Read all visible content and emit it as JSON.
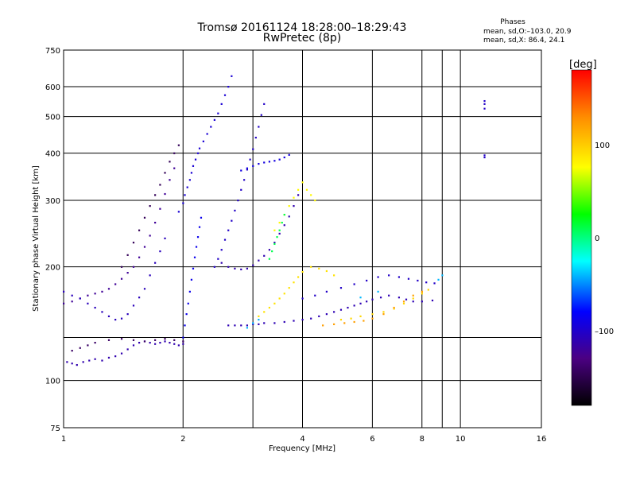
{
  "header": {
    "title_line1": "Tromsø 20161124 18:28:00–18:29:43",
    "title_line2": "RwPretec (8p)",
    "stats_title": "Phases",
    "stats_o": "mean, sd,O:–103.0, 20.9",
    "stats_x": "mean, sd,X:  86.4, 24.1"
  },
  "chart_data": {
    "type": "scatter",
    "xlabel": "Frequency [MHz]",
    "ylabel": "Stationary phase Virtual Height [km]",
    "x_scale": "log",
    "y_scale": "log",
    "xlim": [
      1,
      16
    ],
    "ylim": [
      75,
      750
    ],
    "x_ticks": [
      {
        "value": 1,
        "label": "1"
      },
      {
        "value": 2,
        "label": "2"
      },
      {
        "value": 4,
        "label": "4"
      },
      {
        "value": 6,
        "label": "6"
      },
      {
        "value": 8,
        "label": "8"
      },
      {
        "value": 10,
        "label": "10"
      },
      {
        "value": 16,
        "label": "16"
      }
    ],
    "x_grid": [
      2,
      3,
      4,
      6,
      8,
      9,
      10
    ],
    "y_ticks": [
      {
        "value": 75,
        "label": "75"
      },
      {
        "value": 100,
        "label": "100"
      },
      {
        "value": 200,
        "label": "200"
      },
      {
        "value": 300,
        "label": "300"
      },
      {
        "value": 400,
        "label": "400"
      },
      {
        "value": 500,
        "label": "500"
      },
      {
        "value": 600,
        "label": "600"
      },
      {
        "value": 750,
        "label": "750"
      }
    ],
    "y_grid": [
      100,
      130,
      200,
      300,
      400,
      500,
      600
    ],
    "grid": true,
    "colorbar": {
      "unit_label": "[deg]",
      "range": [
        -180,
        180
      ],
      "ticks": [
        {
          "value": 100,
          "label": "100"
        },
        {
          "value": 0,
          "label": "0"
        },
        {
          "value": -100,
          "label": "–100"
        }
      ],
      "colors": [
        "#000000",
        "#4b0082",
        "#0000ff",
        "#00ffff",
        "#00ff00",
        "#ffff00",
        "#ff8c00",
        "#ff0000"
      ]
    },
    "traces": [
      {
        "name": "O-low-layer",
        "phase": -110,
        "points": [
          [
            1.02,
            112
          ],
          [
            1.05,
            111
          ],
          [
            1.08,
            110
          ],
          [
            1.12,
            112
          ],
          [
            1.16,
            113
          ],
          [
            1.2,
            114
          ],
          [
            1.25,
            113
          ],
          [
            1.3,
            115
          ],
          [
            1.35,
            116
          ],
          [
            1.4,
            118
          ],
          [
            1.45,
            121
          ],
          [
            1.5,
            124
          ],
          [
            1.55,
            126
          ],
          [
            1.6,
            127
          ],
          [
            1.65,
            126
          ],
          [
            1.7,
            125
          ],
          [
            1.75,
            126
          ],
          [
            1.8,
            127
          ],
          [
            1.85,
            126
          ],
          [
            1.9,
            125
          ],
          [
            1.95,
            124
          ],
          [
            2.0,
            125
          ]
        ]
      },
      {
        "name": "O-lower-purple",
        "phase": -140,
        "points": [
          [
            1.05,
            120
          ],
          [
            1.1,
            122
          ],
          [
            1.15,
            124
          ],
          [
            1.2,
            126
          ],
          [
            1.3,
            128
          ],
          [
            1.4,
            129
          ],
          [
            1.5,
            128
          ],
          [
            1.6,
            127
          ],
          [
            1.7,
            128
          ],
          [
            1.8,
            129
          ],
          [
            1.9,
            128
          ],
          [
            2.0,
            127
          ]
        ]
      },
      {
        "name": "O-E-region-trace",
        "phase": -120,
        "points": [
          [
            1.0,
            160
          ],
          [
            1.05,
            162
          ],
          [
            1.1,
            165
          ],
          [
            1.15,
            168
          ],
          [
            1.2,
            170
          ],
          [
            1.25,
            172
          ],
          [
            1.3,
            175
          ],
          [
            1.35,
            180
          ],
          [
            1.4,
            186
          ],
          [
            1.45,
            193
          ],
          [
            1.5,
            200
          ],
          [
            1.55,
            212
          ],
          [
            1.6,
            226
          ],
          [
            1.65,
            242
          ],
          [
            1.7,
            262
          ],
          [
            1.75,
            285
          ],
          [
            1.8,
            312
          ],
          [
            1.85,
            340
          ],
          [
            1.9,
            365
          ]
        ]
      },
      {
        "name": "O-mid-blue",
        "phase": -105,
        "points": [
          [
            1.0,
            172
          ],
          [
            1.05,
            168
          ],
          [
            1.1,
            165
          ],
          [
            1.15,
            160
          ],
          [
            1.2,
            156
          ],
          [
            1.25,
            152
          ],
          [
            1.3,
            148
          ],
          [
            1.35,
            145
          ],
          [
            1.4,
            146
          ],
          [
            1.45,
            150
          ],
          [
            1.5,
            158
          ],
          [
            1.55,
            166
          ],
          [
            1.6,
            175
          ],
          [
            1.65,
            190
          ],
          [
            1.7,
            205
          ],
          [
            1.75,
            220
          ],
          [
            1.8,
            238
          ]
        ]
      },
      {
        "name": "O-steep-purple",
        "phase": -145,
        "points": [
          [
            1.4,
            200
          ],
          [
            1.45,
            215
          ],
          [
            1.5,
            232
          ],
          [
            1.55,
            250
          ],
          [
            1.6,
            270
          ],
          [
            1.65,
            290
          ],
          [
            1.7,
            310
          ],
          [
            1.75,
            330
          ],
          [
            1.8,
            355
          ],
          [
            1.85,
            380
          ],
          [
            1.9,
            400
          ],
          [
            1.95,
            420
          ]
        ]
      },
      {
        "name": "O-F-cluster-2MHz",
        "phase": -95,
        "points": [
          [
            1.95,
            280
          ],
          [
            2.0,
            295
          ],
          [
            2.02,
            310
          ],
          [
            2.05,
            325
          ],
          [
            2.08,
            340
          ],
          [
            2.1,
            355
          ],
          [
            2.12,
            370
          ],
          [
            2.15,
            385
          ],
          [
            2.18,
            400
          ],
          [
            2.2,
            412
          ],
          [
            2.25,
            430
          ],
          [
            2.3,
            450
          ],
          [
            2.35,
            470
          ],
          [
            2.4,
            490
          ],
          [
            2.45,
            510
          ],
          [
            2.5,
            540
          ],
          [
            2.55,
            570
          ],
          [
            2.6,
            600
          ],
          [
            2.65,
            640
          ]
        ]
      },
      {
        "name": "O-F-vertical-2MHz",
        "phase": -85,
        "points": [
          [
            2.0,
            130
          ],
          [
            2.02,
            140
          ],
          [
            2.04,
            150
          ],
          [
            2.06,
            160
          ],
          [
            2.08,
            172
          ],
          [
            2.1,
            185
          ],
          [
            2.12,
            198
          ],
          [
            2.14,
            212
          ],
          [
            2.16,
            226
          ],
          [
            2.18,
            240
          ],
          [
            2.2,
            255
          ],
          [
            2.22,
            270
          ]
        ]
      },
      {
        "name": "O-F-2.5MHz",
        "phase": -100,
        "points": [
          [
            2.4,
            200
          ],
          [
            2.45,
            210
          ],
          [
            2.5,
            222
          ],
          [
            2.55,
            236
          ],
          [
            2.6,
            250
          ],
          [
            2.65,
            265
          ],
          [
            2.7,
            282
          ],
          [
            2.75,
            300
          ],
          [
            2.8,
            320
          ],
          [
            2.85,
            340
          ],
          [
            2.9,
            362
          ],
          [
            2.95,
            385
          ],
          [
            3.0,
            410
          ],
          [
            3.05,
            440
          ],
          [
            3.1,
            470
          ],
          [
            3.15,
            505
          ],
          [
            3.2,
            540
          ]
        ]
      },
      {
        "name": "O-F-horizontal",
        "phase": -110,
        "points": [
          [
            2.5,
            205
          ],
          [
            2.6,
            200
          ],
          [
            2.7,
            198
          ],
          [
            2.8,
            197
          ],
          [
            2.9,
            198
          ],
          [
            3.0,
            202
          ],
          [
            3.1,
            208
          ],
          [
            3.2,
            214
          ],
          [
            3.3,
            222
          ],
          [
            3.4,
            232
          ],
          [
            3.5,
            245
          ],
          [
            3.6,
            258
          ],
          [
            3.7,
            272
          ],
          [
            3.8,
            290
          ],
          [
            3.9,
            310
          ]
        ]
      },
      {
        "name": "O-F-upper",
        "phase": -90,
        "points": [
          [
            2.8,
            360
          ],
          [
            2.9,
            365
          ],
          [
            3.0,
            370
          ],
          [
            3.1,
            375
          ],
          [
            3.2,
            378
          ],
          [
            3.3,
            380
          ],
          [
            3.4,
            382
          ],
          [
            3.5,
            385
          ],
          [
            3.6,
            390
          ],
          [
            3.7,
            396
          ]
        ]
      },
      {
        "name": "O-F-lower-band",
        "phase": -108,
        "points": [
          [
            2.6,
            140
          ],
          [
            2.7,
            140
          ],
          [
            2.8,
            140
          ],
          [
            2.9,
            140
          ],
          [
            3.0,
            141
          ],
          [
            3.1,
            141
          ],
          [
            3.2,
            142
          ],
          [
            3.4,
            142
          ],
          [
            3.6,
            143
          ],
          [
            3.8,
            144
          ],
          [
            4.0,
            145
          ],
          [
            4.2,
            146
          ],
          [
            4.4,
            148
          ],
          [
            4.6,
            150
          ],
          [
            4.8,
            152
          ],
          [
            5.0,
            154
          ],
          [
            5.2,
            156
          ],
          [
            5.4,
            158
          ],
          [
            5.6,
            160
          ],
          [
            5.8,
            162
          ],
          [
            6.0,
            164
          ],
          [
            6.3,
            166
          ],
          [
            6.6,
            168
          ],
          [
            7.0,
            166
          ],
          [
            7.3,
            164
          ],
          [
            7.6,
            162
          ],
          [
            8.0,
            162
          ],
          [
            8.5,
            163
          ]
        ]
      },
      {
        "name": "O-F-high-band",
        "phase": -100,
        "points": [
          [
            4.0,
            165
          ],
          [
            4.3,
            168
          ],
          [
            4.6,
            172
          ],
          [
            5.0,
            176
          ],
          [
            5.4,
            180
          ],
          [
            5.8,
            184
          ],
          [
            6.2,
            188
          ],
          [
            6.6,
            190
          ],
          [
            7.0,
            188
          ],
          [
            7.4,
            186
          ],
          [
            7.8,
            184
          ],
          [
            8.2,
            182
          ],
          [
            8.6,
            181
          ]
        ]
      },
      {
        "name": "X-mid-yellow",
        "phase": 90,
        "points": [
          [
            3.1,
            148
          ],
          [
            3.2,
            152
          ],
          [
            3.3,
            156
          ],
          [
            3.4,
            160
          ],
          [
            3.5,
            165
          ],
          [
            3.6,
            170
          ],
          [
            3.7,
            176
          ],
          [
            3.8,
            182
          ],
          [
            3.9,
            188
          ],
          [
            4.0,
            194
          ],
          [
            4.2,
            200
          ],
          [
            4.4,
            198
          ],
          [
            4.6,
            195
          ],
          [
            4.8,
            190
          ]
        ]
      },
      {
        "name": "X-upper-yellow",
        "phase": 80,
        "points": [
          [
            3.4,
            250
          ],
          [
            3.5,
            262
          ],
          [
            3.6,
            275
          ],
          [
            3.7,
            290
          ],
          [
            3.8,
            305
          ],
          [
            3.9,
            320
          ],
          [
            4.0,
            335
          ],
          [
            4.1,
            320
          ],
          [
            4.2,
            310
          ],
          [
            4.3,
            300
          ]
        ]
      },
      {
        "name": "X-green-cluster",
        "phase": 10,
        "points": [
          [
            3.3,
            210
          ],
          [
            3.35,
            220
          ],
          [
            3.4,
            230
          ],
          [
            3.45,
            240
          ],
          [
            3.5,
            250
          ],
          [
            3.55,
            262
          ],
          [
            3.6,
            275
          ]
        ]
      },
      {
        "name": "X-high-freq",
        "phase": 95,
        "points": [
          [
            5.0,
            145
          ],
          [
            5.3,
            146
          ],
          [
            5.6,
            148
          ],
          [
            6.0,
            150
          ],
          [
            6.4,
            152
          ],
          [
            6.8,
            155
          ],
          [
            7.2,
            160
          ],
          [
            7.6,
            165
          ],
          [
            8.0,
            170
          ],
          [
            8.3,
            174
          ]
        ]
      },
      {
        "name": "X-orange-band",
        "phase": 120,
        "points": [
          [
            4.5,
            140
          ],
          [
            4.8,
            141
          ],
          [
            5.1,
            142
          ],
          [
            5.4,
            143
          ],
          [
            5.7,
            144
          ],
          [
            6.0,
            146
          ],
          [
            6.4,
            150
          ],
          [
            6.8,
            156
          ],
          [
            7.2,
            162
          ],
          [
            7.6,
            168
          ],
          [
            8.0,
            172
          ]
        ]
      },
      {
        "name": "X-upper-blue-11MHz",
        "phase": -100,
        "points": [
          [
            11.5,
            525
          ],
          [
            11.5,
            540
          ],
          [
            11.5,
            550
          ],
          [
            11.5,
            395
          ],
          [
            11.5,
            390
          ]
        ]
      },
      {
        "name": "X-cyan-bits",
        "phase": -40,
        "points": [
          [
            2.9,
            138
          ],
          [
            3.0,
            142
          ],
          [
            3.1,
            145
          ],
          [
            5.6,
            166
          ],
          [
            6.2,
            172
          ],
          [
            8.8,
            185
          ],
          [
            9.0,
            190
          ]
        ]
      }
    ]
  }
}
